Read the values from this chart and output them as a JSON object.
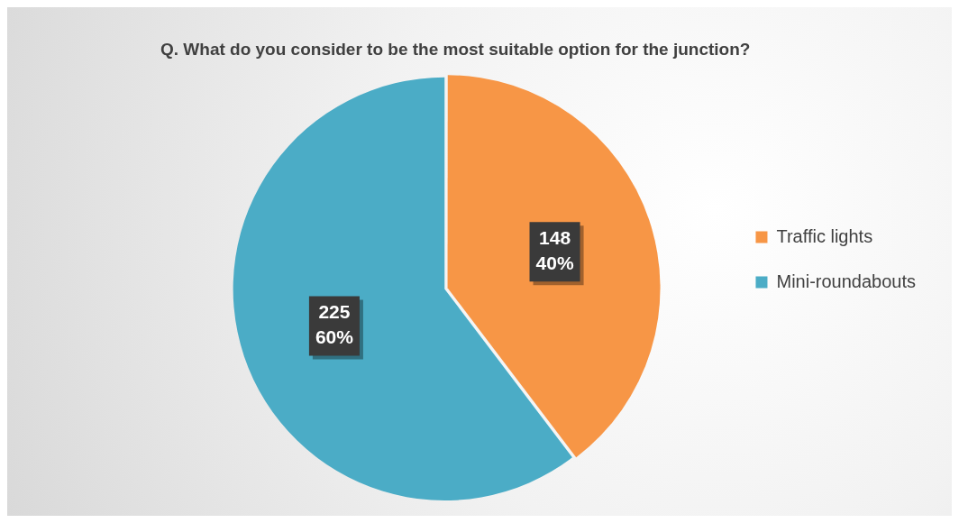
{
  "chart_data": {
    "type": "pie",
    "title": "Q. What do you consider to be the most suitable option for the junction?",
    "categories": [
      "Traffic lights",
      "Mini-roundabouts"
    ],
    "values": [
      148,
      225
    ],
    "colors": [
      "#f79646",
      "#4bacc6"
    ],
    "value_labels": [
      "148\n40%",
      "225\n60%"
    ],
    "legend": "right"
  }
}
